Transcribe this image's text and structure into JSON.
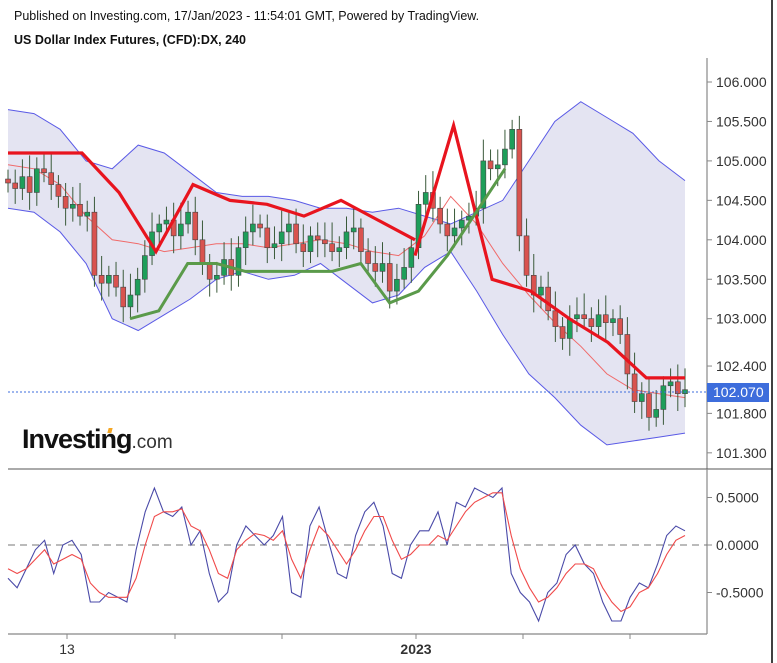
{
  "header": {
    "published": "Published on Investing.com, 17/Jan/2023 - 11:54:01 GMT, Powered by TradingView.",
    "title": "US Dollar Index Futures, (CFD):DX, 240"
  },
  "logo": {
    "brand": "Investing",
    "suffix": ".com"
  },
  "current_price": "102.070",
  "colors": {
    "bull": "#1e9e5a",
    "bear": "#d9534f",
    "band_fill": "#e4e4f2",
    "band_line": "#5a5ae6",
    "basis_line": "#f06a6a",
    "supertrend_up": "#5a9a4a",
    "supertrend_down": "#e8141e",
    "osc_main": "#4a4aa8",
    "osc_signal": "#f04a4a",
    "price_badge": "#3d6ddc"
  },
  "chart_data": [
    {
      "type": "candlestick",
      "title": "US Dollar Index Futures, (CFD):DX, 240",
      "indicators": [
        "Bollinger Bands",
        "SuperTrend"
      ],
      "y_ticks": [
        "106.000",
        "105.500",
        "105.000",
        "104.500",
        "104.000",
        "103.500",
        "103.000",
        "102.400",
        "101.800",
        "101.300"
      ],
      "ylim": [
        101.2,
        106.3
      ],
      "last_price": 102.07,
      "x_tick_labels": [
        "13",
        "",
        "",
        "2023",
        "",
        ""
      ],
      "close_series": [
        104.72,
        104.65,
        104.8,
        104.6,
        104.9,
        104.85,
        104.7,
        104.55,
        104.4,
        104.45,
        104.3,
        104.35,
        103.55,
        103.45,
        103.55,
        103.4,
        103.15,
        103.3,
        103.5,
        103.8,
        104.1,
        104.2,
        104.25,
        104.05,
        104.2,
        104.35,
        104.0,
        103.7,
        103.5,
        103.55,
        103.75,
        103.55,
        103.9,
        104.1,
        104.2,
        104.15,
        103.9,
        103.95,
        104.1,
        104.2,
        103.95,
        103.85,
        104.05,
        104.0,
        103.95,
        103.85,
        103.9,
        104.1,
        104.15,
        103.85,
        103.7,
        103.6,
        103.7,
        103.35,
        103.5,
        103.65,
        103.9,
        104.45,
        104.6,
        104.4,
        104.2,
        104.05,
        104.15,
        104.25,
        104.3,
        104.4,
        105.0,
        104.9,
        104.95,
        105.15,
        105.4,
        104.05,
        103.55,
        103.3,
        103.4,
        103.1,
        102.9,
        102.75,
        103.0,
        103.05,
        103.0,
        102.9,
        103.05,
        102.95,
        103.0,
        102.8,
        102.3,
        101.95,
        102.05,
        101.75,
        101.85,
        102.15,
        102.2,
        102.05,
        102.1
      ],
      "bollinger": {
        "upper": [
          105.65,
          105.6,
          105.4,
          105.0,
          104.9,
          105.2,
          105.1,
          104.85,
          104.6,
          104.55,
          104.55,
          104.5,
          104.4,
          104.4,
          104.35,
          104.4,
          104.3,
          104.2,
          104.35,
          104.5,
          105.0,
          105.5,
          105.75,
          105.55,
          105.35,
          105.0,
          104.75
        ],
        "lower": [
          104.4,
          104.35,
          104.1,
          103.7,
          103.0,
          102.85,
          103.05,
          103.25,
          103.5,
          103.6,
          103.5,
          103.55,
          103.7,
          103.45,
          103.2,
          103.3,
          103.65,
          103.85,
          103.35,
          102.8,
          102.3,
          102.0,
          101.65,
          101.4,
          101.45,
          101.5,
          101.55
        ],
        "basis": [
          104.95,
          104.9,
          104.7,
          104.3,
          104.0,
          103.95,
          103.85,
          103.9,
          103.95,
          103.95,
          103.9,
          103.95,
          104.0,
          103.95,
          103.85,
          103.8,
          104.05,
          104.55,
          104.2,
          103.7,
          103.3,
          102.95,
          102.65,
          102.3,
          102.1,
          102.05,
          102.0
        ]
      },
      "supertrend": {
        "up_segment_values": [
          103.0,
          103.1,
          103.7,
          103.7,
          103.6,
          103.6,
          103.6,
          103.6,
          103.7,
          103.2,
          103.35,
          103.8,
          104.35,
          104.9
        ],
        "down_segment_values": [
          105.1,
          105.1,
          105.1,
          104.6,
          103.85,
          104.7,
          104.5,
          104.45,
          104.3,
          104.5,
          104.25,
          104.0,
          103.8,
          105.45,
          103.5,
          103.35,
          103.0,
          102.7,
          102.25,
          102.25
        ]
      }
    },
    {
      "type": "line",
      "title": "Oscillator",
      "y_ticks": [
        "0.5000",
        "0.0000",
        "-0.5000"
      ],
      "ylim": [
        -0.85,
        0.8
      ],
      "zero_line": "dashed",
      "series": [
        {
          "name": "main",
          "color": "#4a4aa8",
          "values": [
            -0.35,
            -0.45,
            -0.25,
            -0.05,
            0.05,
            -0.3,
            0.0,
            0.05,
            -0.1,
            -0.6,
            -0.6,
            -0.5,
            -0.55,
            -0.6,
            -0.05,
            0.35,
            0.6,
            0.35,
            0.3,
            0.4,
            0.0,
            0.15,
            -0.3,
            -0.6,
            -0.5,
            0.0,
            0.2,
            0.1,
            0.0,
            0.1,
            0.3,
            -0.5,
            -0.55,
            0.2,
            0.4,
            0.05,
            -0.3,
            -0.35,
            0.1,
            0.35,
            0.45,
            0.2,
            -0.3,
            -0.35,
            0.0,
            0.15,
            0.15,
            0.35,
            0.0,
            0.45,
            0.4,
            0.6,
            0.55,
            0.5,
            0.6,
            -0.3,
            -0.5,
            -0.6,
            -0.8,
            -0.5,
            -0.4,
            -0.1,
            0.0,
            -0.2,
            -0.3,
            -0.6,
            -0.8,
            -0.8,
            -0.55,
            -0.4,
            -0.45,
            -0.2,
            0.1,
            0.2,
            0.15
          ]
        },
        {
          "name": "signal",
          "color": "#f04a4a",
          "values": [
            -0.25,
            -0.3,
            -0.25,
            -0.15,
            -0.05,
            -0.2,
            -0.15,
            -0.1,
            -0.15,
            -0.4,
            -0.5,
            -0.55,
            -0.55,
            -0.55,
            -0.35,
            0.0,
            0.3,
            0.35,
            0.35,
            0.38,
            0.2,
            0.15,
            -0.05,
            -0.3,
            -0.35,
            -0.05,
            0.05,
            0.12,
            0.1,
            0.05,
            0.15,
            -0.15,
            -0.35,
            -0.05,
            0.2,
            0.1,
            -0.05,
            -0.2,
            -0.05,
            0.15,
            0.3,
            0.3,
            0.05,
            -0.15,
            -0.1,
            0.0,
            0.0,
            0.1,
            0.05,
            0.2,
            0.35,
            0.45,
            0.5,
            0.55,
            0.55,
            0.1,
            -0.25,
            -0.45,
            -0.6,
            -0.55,
            -0.45,
            -0.3,
            -0.2,
            -0.2,
            -0.25,
            -0.45,
            -0.6,
            -0.7,
            -0.65,
            -0.5,
            -0.45,
            -0.3,
            -0.1,
            0.05,
            0.1
          ]
        }
      ]
    }
  ]
}
